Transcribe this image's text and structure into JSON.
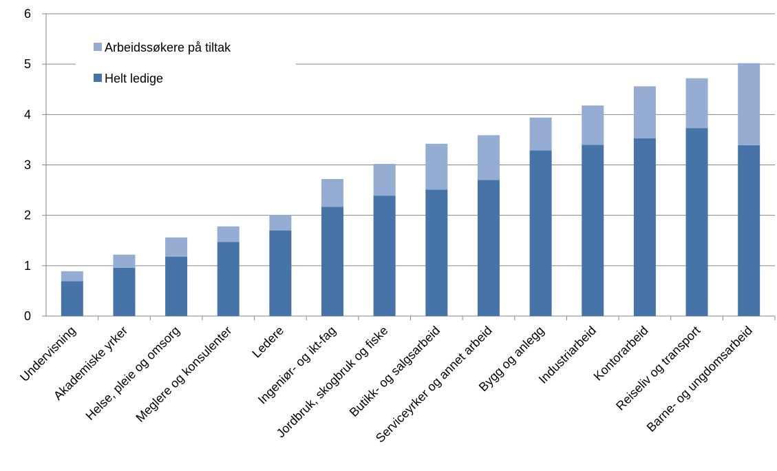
{
  "chart_data": {
    "type": "bar",
    "stacked": true,
    "title": "",
    "xlabel": "",
    "ylabel": "",
    "ylim": [
      0,
      6
    ],
    "yticks": [
      "0",
      "1",
      "2",
      "3",
      "4",
      "5",
      "6"
    ],
    "grid": true,
    "legend_position": "top-left",
    "categories": [
      "Undervisning",
      "Akademiske yrker",
      "Helse, pleie og omsorg",
      "Meglere og konsulenter",
      "Ledere",
      "Ingeniør- og ikt-fag",
      "Jordbruk, skogbruk og fiske",
      "Butikk- og salgsarbeid",
      "Serviceyrker og annet arbeid",
      "Bygg og anlegg",
      "Industriarbeid",
      "Kontorarbeid",
      "Reiseliv og transport",
      "Barne- og ungdomsarbeid"
    ],
    "series": [
      {
        "name": "Helt ledige",
        "color": "#4673a8",
        "values": [
          0.69,
          0.96,
          1.18,
          1.47,
          1.7,
          2.17,
          2.39,
          2.51,
          2.7,
          3.29,
          3.4,
          3.53,
          3.73,
          3.39
        ]
      },
      {
        "name": "Arbeidssøkere på tiltak",
        "color": "#95acd3",
        "values": [
          0.2,
          0.26,
          0.38,
          0.31,
          0.31,
          0.55,
          0.63,
          0.91,
          0.89,
          0.65,
          0.78,
          1.03,
          0.99,
          1.63
        ]
      }
    ],
    "legend": [
      {
        "label": "Arbeidssøkere på tiltak",
        "color": "#95acd3"
      },
      {
        "label": "Helt ledige",
        "color": "#4673a8"
      }
    ]
  }
}
